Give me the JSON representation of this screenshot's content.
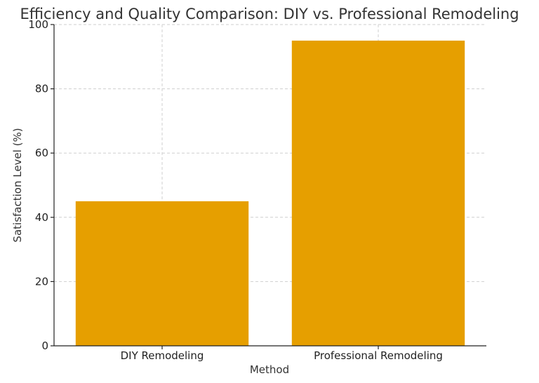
{
  "chart_data": {
    "type": "bar",
    "title": "Efficiency and Quality Comparison: DIY vs. Professional Remodeling",
    "xlabel": "Method",
    "ylabel": "Satisfaction Level (%)",
    "categories": [
      "DIY Remodeling",
      "Professional Remodeling"
    ],
    "values": [
      45,
      95
    ],
    "ylim": [
      0,
      100
    ],
    "yticks": [
      0,
      20,
      40,
      60,
      80,
      100
    ],
    "bar_color": "#E69F00",
    "grid": true
  }
}
